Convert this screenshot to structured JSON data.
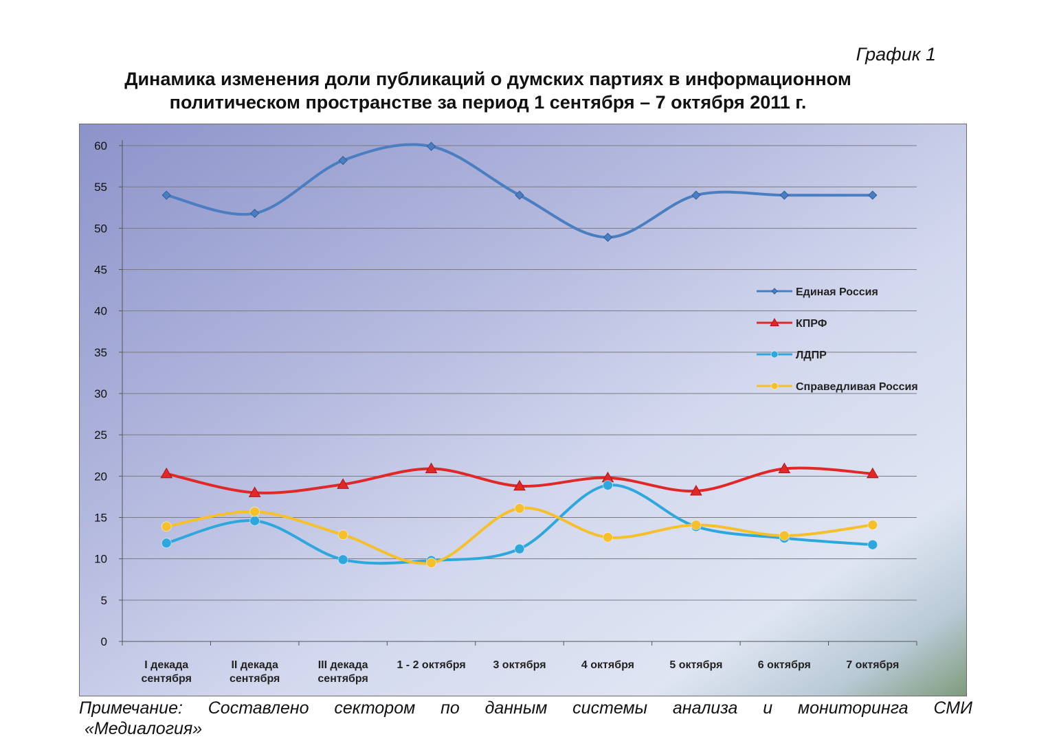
{
  "graph_label": "График 1",
  "title_line1": "Динамика изменения доли публикаций о думских партиях в информационном",
  "title_line2": "политическом пространстве за период 1 сентября – 7 октября 2011 г.",
  "note_line1": "Примечание: Составлено сектором по данным системы анализа и мониторинга СМИ",
  "note_line2": "«Медиалогия»",
  "chart_data": {
    "type": "line",
    "title": "",
    "xlabel": "",
    "ylabel": "",
    "ylim": [
      0,
      60
    ],
    "yticks": [
      0,
      5,
      10,
      15,
      20,
      25,
      30,
      35,
      40,
      45,
      50,
      55,
      60
    ],
    "grid": true,
    "legend_position": "right",
    "categories": [
      [
        "I декада",
        "сентября"
      ],
      [
        "II декада",
        "сентября"
      ],
      [
        "III декада",
        "сентября"
      ],
      [
        "1 - 2 октября"
      ],
      [
        "3 октября"
      ],
      [
        "4 октября"
      ],
      [
        "5 октября"
      ],
      [
        "6 октября"
      ],
      [
        "7 октября"
      ]
    ],
    "series": [
      {
        "name": "Единая Россия",
        "color": "#4a7ec0",
        "marker": "diamond",
        "values": [
          54.0,
          51.8,
          58.2,
          59.9,
          54.0,
          48.9,
          54.0,
          54.0,
          54.0
        ]
      },
      {
        "name": "КПРФ",
        "color": "#e02828",
        "marker": "triangle",
        "values": [
          20.3,
          18.0,
          19.0,
          20.9,
          18.8,
          19.8,
          18.2,
          20.9,
          20.3
        ]
      },
      {
        "name": "ЛДПР",
        "color": "#2ea8dc",
        "marker": "circle",
        "values": [
          11.9,
          14.6,
          9.9,
          9.8,
          11.2,
          18.9,
          13.9,
          12.5,
          11.7
        ]
      },
      {
        "name": "Справедливая Россия",
        "color": "#f5c02c",
        "marker": "circle",
        "values": [
          13.9,
          15.7,
          12.9,
          9.5,
          16.1,
          12.6,
          14.1,
          12.8,
          14.1
        ]
      }
    ]
  }
}
